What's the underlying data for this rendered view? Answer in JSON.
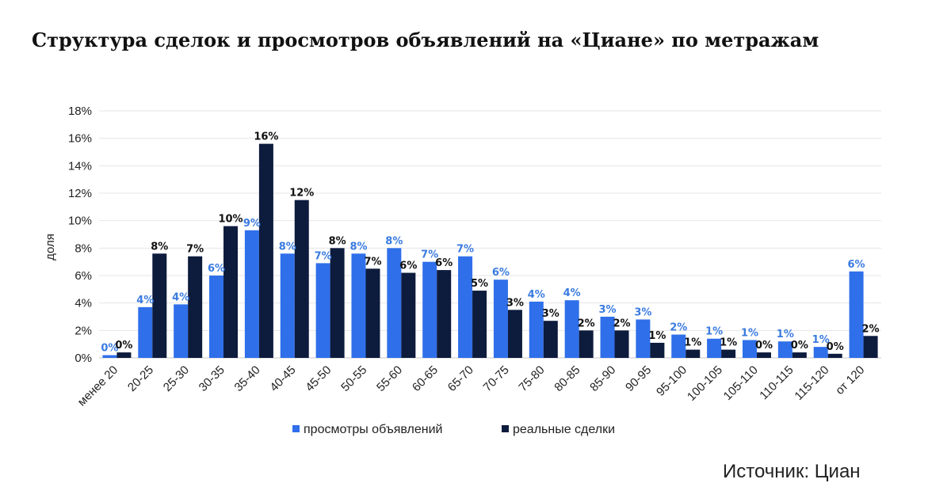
{
  "title": "Структура сделок и просмотров объявлений на «Циане» по метражам",
  "source": "Источник: Циан",
  "colors": {
    "views": "#2f6fea",
    "deals": "#0d1b3d",
    "views_label": "#3a7be0",
    "deals_label": "#111111"
  },
  "chart_data": {
    "type": "bar",
    "ylabel": "доля",
    "ylim": [
      0,
      18
    ],
    "yticks": [
      "0%",
      "2%",
      "4%",
      "6%",
      "8%",
      "10%",
      "12%",
      "14%",
      "16%",
      "18%"
    ],
    "grid": true,
    "legend_position": "bottom",
    "categories": [
      "менее 20",
      "20-25",
      "25-30",
      "30-35",
      "35-40",
      "40-45",
      "45-50",
      "50-55",
      "55-60",
      "60-65",
      "65-70",
      "70-75",
      "75-80",
      "80-85",
      "85-90",
      "90-95",
      "95-100",
      "100-105",
      "105-110",
      "110-115",
      "115-120",
      "от 120"
    ],
    "series": [
      {
        "name": "просмотры объявлений",
        "values": [
          0.2,
          3.7,
          3.9,
          6.0,
          9.3,
          7.6,
          6.9,
          7.6,
          8.0,
          7.0,
          7.4,
          5.7,
          4.1,
          4.2,
          3.0,
          2.8,
          1.7,
          1.4,
          1.3,
          1.2,
          0.8,
          6.3
        ],
        "labels": [
          "0%",
          "4%",
          "4%",
          "6%",
          "9%",
          "8%",
          "7%",
          "8%",
          "8%",
          "7%",
          "7%",
          "6%",
          "4%",
          "4%",
          "3%",
          "3%",
          "2%",
          "1%",
          "1%",
          "1%",
          "1%",
          "6%"
        ]
      },
      {
        "name": "реальные сделки",
        "values": [
          0.4,
          7.6,
          7.4,
          9.6,
          15.6,
          11.5,
          8.0,
          6.5,
          6.2,
          6.4,
          4.9,
          3.5,
          2.7,
          2.0,
          2.0,
          1.1,
          0.6,
          0.6,
          0.4,
          0.4,
          0.3,
          1.6
        ],
        "labels": [
          "0%",
          "8%",
          "7%",
          "10%",
          "16%",
          "12%",
          "8%",
          "7%",
          "6%",
          "6%",
          "5%",
          "3%",
          "3%",
          "2%",
          "2%",
          "1%",
          "1%",
          "1%",
          "0%",
          "0%",
          "0%",
          "2%"
        ]
      }
    ]
  }
}
